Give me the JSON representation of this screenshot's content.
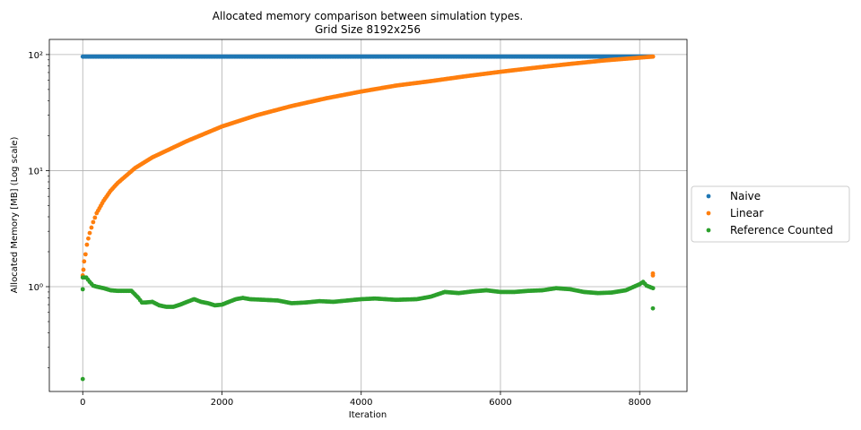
{
  "chart_data": {
    "type": "scatter",
    "title_line1": "Allocated memory comparison between simulation types.",
    "title_line2": "Grid Size 8192x256",
    "xlabel": "Iteration",
    "ylabel": "Allocated Memory [MB] (Log scale)",
    "yscale": "log",
    "xlim": [
      -480,
      8680
    ],
    "ylim": [
      0.125,
      135
    ],
    "x_ticks": [
      0,
      2000,
      4000,
      6000,
      8000
    ],
    "x_tick_labels": [
      "0",
      "2000",
      "4000",
      "6000",
      "8000"
    ],
    "y_ticks": [
      1,
      10,
      100
    ],
    "y_tick_labels": [
      "10⁰",
      "10¹",
      "10²"
    ],
    "grid": true,
    "legend_position": "outside right",
    "series": [
      {
        "name": "Naive",
        "color": "#1f77b4",
        "kind": "constant",
        "x_range": [
          0,
          8192
        ],
        "value": 96
      },
      {
        "name": "Linear",
        "color": "#ff7f0e",
        "points": [
          [
            0,
            1.25
          ],
          [
            10,
            1.4
          ],
          [
            20,
            1.65
          ],
          [
            40,
            1.9
          ],
          [
            60,
            2.3
          ],
          [
            80,
            2.6
          ],
          [
            100,
            2.9
          ],
          [
            150,
            3.6
          ],
          [
            200,
            4.3
          ],
          [
            300,
            5.5
          ],
          [
            400,
            6.7
          ],
          [
            500,
            7.8
          ],
          [
            750,
            10.5
          ],
          [
            1000,
            13
          ],
          [
            1500,
            18
          ],
          [
            2000,
            24
          ],
          [
            2500,
            30
          ],
          [
            3000,
            36
          ],
          [
            3500,
            42
          ],
          [
            4000,
            48
          ],
          [
            4500,
            54
          ],
          [
            5000,
            59
          ],
          [
            5500,
            65
          ],
          [
            6000,
            71
          ],
          [
            6500,
            77
          ],
          [
            7000,
            83
          ],
          [
            7500,
            89
          ],
          [
            8000,
            94
          ],
          [
            8192,
            96
          ],
          [
            8190,
            1.3
          ],
          [
            8190,
            1.25
          ]
        ]
      },
      {
        "name": "Reference Counted",
        "color": "#2ca02c",
        "points": [
          [
            0,
            0.16
          ],
          [
            0,
            0.95
          ],
          [
            0,
            1.2
          ],
          [
            50,
            1.2
          ],
          [
            100,
            1.1
          ],
          [
            150,
            1.02
          ],
          [
            200,
            1.0
          ],
          [
            300,
            0.97
          ],
          [
            400,
            0.93
          ],
          [
            500,
            0.92
          ],
          [
            600,
            0.92
          ],
          [
            700,
            0.92
          ],
          [
            800,
            0.8
          ],
          [
            850,
            0.73
          ],
          [
            900,
            0.73
          ],
          [
            1000,
            0.74
          ],
          [
            1100,
            0.69
          ],
          [
            1200,
            0.67
          ],
          [
            1300,
            0.67
          ],
          [
            1400,
            0.7
          ],
          [
            1500,
            0.74
          ],
          [
            1600,
            0.78
          ],
          [
            1700,
            0.74
          ],
          [
            1800,
            0.72
          ],
          [
            1900,
            0.69
          ],
          [
            2000,
            0.7
          ],
          [
            2100,
            0.74
          ],
          [
            2200,
            0.78
          ],
          [
            2300,
            0.8
          ],
          [
            2400,
            0.78
          ],
          [
            2600,
            0.77
          ],
          [
            2800,
            0.76
          ],
          [
            3000,
            0.72
          ],
          [
            3200,
            0.73
          ],
          [
            3400,
            0.75
          ],
          [
            3600,
            0.74
          ],
          [
            3800,
            0.76
          ],
          [
            4000,
            0.78
          ],
          [
            4200,
            0.79
          ],
          [
            4500,
            0.77
          ],
          [
            4800,
            0.78
          ],
          [
            5000,
            0.82
          ],
          [
            5200,
            0.9
          ],
          [
            5400,
            0.88
          ],
          [
            5600,
            0.91
          ],
          [
            5800,
            0.93
          ],
          [
            6000,
            0.9
          ],
          [
            6200,
            0.9
          ],
          [
            6400,
            0.92
          ],
          [
            6600,
            0.93
          ],
          [
            6800,
            0.97
          ],
          [
            7000,
            0.95
          ],
          [
            7200,
            0.9
          ],
          [
            7400,
            0.88
          ],
          [
            7600,
            0.89
          ],
          [
            7800,
            0.93
          ],
          [
            8000,
            1.05
          ],
          [
            8050,
            1.1
          ],
          [
            8100,
            1.02
          ],
          [
            8192,
            0.97
          ],
          [
            8190,
            0.65
          ]
        ]
      }
    ]
  }
}
